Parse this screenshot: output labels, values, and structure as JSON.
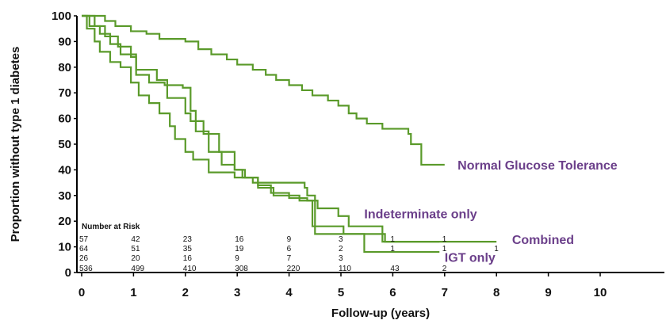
{
  "chart_data": {
    "type": "line",
    "step": true,
    "xlabel": "Follow-up (years)",
    "ylabel": "Proportion without  type 1 diabetes",
    "xlim": [
      0,
      11
    ],
    "ylim": [
      0,
      100
    ],
    "xticks": [
      0,
      1,
      2,
      3,
      4,
      5,
      6,
      7,
      8,
      9,
      10
    ],
    "yticks": [
      0,
      10,
      20,
      30,
      40,
      50,
      60,
      70,
      80,
      90,
      100
    ],
    "line_color": "#5a9a2a",
    "label_color": "#6b3f8a",
    "series": [
      {
        "name": "Normal Glucose Tolerance",
        "points": [
          [
            0,
            100
          ],
          [
            0.45,
            98
          ],
          [
            0.65,
            96
          ],
          [
            0.95,
            94
          ],
          [
            1.25,
            93
          ],
          [
            1.5,
            91
          ],
          [
            2.0,
            90
          ],
          [
            2.25,
            87
          ],
          [
            2.5,
            85
          ],
          [
            2.8,
            83
          ],
          [
            3.0,
            81
          ],
          [
            3.3,
            79
          ],
          [
            3.55,
            77
          ],
          [
            3.75,
            75
          ],
          [
            4.0,
            73
          ],
          [
            4.25,
            71
          ],
          [
            4.45,
            69
          ],
          [
            4.75,
            67
          ],
          [
            4.95,
            65
          ],
          [
            5.15,
            62
          ],
          [
            5.3,
            60
          ],
          [
            5.5,
            58
          ],
          [
            5.8,
            56
          ],
          [
            6.3,
            54
          ],
          [
            6.35,
            50
          ],
          [
            6.55,
            42
          ],
          [
            7.0,
            42
          ]
        ]
      },
      {
        "name": "Indeterminate only",
        "points": [
          [
            0,
            100
          ],
          [
            0.25,
            96
          ],
          [
            0.45,
            92
          ],
          [
            0.7,
            88
          ],
          [
            0.95,
            84
          ],
          [
            1.05,
            77
          ],
          [
            1.3,
            74
          ],
          [
            1.6,
            73
          ],
          [
            1.95,
            72
          ],
          [
            2.1,
            63
          ],
          [
            2.2,
            55
          ],
          [
            2.45,
            47
          ],
          [
            2.7,
            42
          ],
          [
            2.95,
            40
          ],
          [
            3.15,
            37
          ],
          [
            3.4,
            33
          ],
          [
            3.7,
            30
          ],
          [
            4.0,
            30
          ],
          [
            4.2,
            28
          ],
          [
            4.45,
            24
          ],
          [
            4.45,
            18
          ],
          [
            5.0,
            18
          ],
          [
            5.05,
            15
          ],
          [
            5.8,
            12
          ],
          [
            8.0,
            12
          ]
        ]
      },
      {
        "name": "Combined",
        "points": [
          [
            0,
            100
          ],
          [
            0.15,
            96
          ],
          [
            0.35,
            93
          ],
          [
            0.55,
            89
          ],
          [
            0.75,
            85
          ],
          [
            1.05,
            79
          ],
          [
            1.45,
            75
          ],
          [
            1.65,
            68
          ],
          [
            2.0,
            62
          ],
          [
            2.1,
            59
          ],
          [
            2.35,
            54
          ],
          [
            2.65,
            47
          ],
          [
            2.95,
            40
          ],
          [
            3.1,
            37
          ],
          [
            3.4,
            34
          ],
          [
            3.65,
            31
          ],
          [
            4.0,
            29
          ],
          [
            4.35,
            28
          ],
          [
            4.55,
            25
          ],
          [
            4.95,
            22
          ],
          [
            5.15,
            18
          ],
          [
            5.65,
            18
          ],
          [
            5.8,
            15
          ],
          [
            5.85,
            12
          ],
          [
            6.9,
            12
          ]
        ]
      },
      {
        "name": "IGT only",
        "points": [
          [
            0,
            100
          ],
          [
            0.1,
            95
          ],
          [
            0.25,
            90
          ],
          [
            0.35,
            86
          ],
          [
            0.55,
            82
          ],
          [
            0.75,
            80
          ],
          [
            0.95,
            74
          ],
          [
            1.1,
            69
          ],
          [
            1.3,
            66
          ],
          [
            1.5,
            62
          ],
          [
            1.7,
            57
          ],
          [
            1.8,
            52
          ],
          [
            2.0,
            47
          ],
          [
            2.15,
            44
          ],
          [
            2.45,
            39
          ],
          [
            2.95,
            37
          ],
          [
            3.3,
            35
          ],
          [
            3.95,
            35
          ],
          [
            4.3,
            33
          ],
          [
            4.35,
            30
          ],
          [
            4.5,
            27
          ],
          [
            4.5,
            15
          ],
          [
            5.4,
            15
          ],
          [
            5.45,
            8
          ],
          [
            6.9,
            8
          ]
        ]
      }
    ],
    "series_labels": [
      {
        "text": "Normal Glucose Tolerance",
        "x": 7.25,
        "y": 42
      },
      {
        "text": "Indeterminate only",
        "x": 5.45,
        "y": 23
      },
      {
        "text": "Combined",
        "x": 8.3,
        "y": 13
      },
      {
        "text": "IGT only",
        "x": 7.0,
        "y": 6
      }
    ],
    "risk_table": {
      "title": "Number at Risk",
      "columns_x": [
        0,
        1,
        2,
        3,
        4,
        5,
        6,
        7,
        8
      ],
      "rows": [
        [
          "57",
          "42",
          "23",
          "16",
          "9",
          "3",
          "1",
          "1",
          ""
        ],
        [
          "64",
          "51",
          "35",
          "19",
          "6",
          "2",
          "1",
          "1",
          "1"
        ],
        [
          "26",
          "20",
          "16",
          "9",
          "7",
          "3",
          "",
          "",
          ""
        ],
        [
          "536",
          "499",
          "410",
          "308",
          "220",
          "110",
          "43",
          "2",
          ""
        ]
      ]
    }
  }
}
